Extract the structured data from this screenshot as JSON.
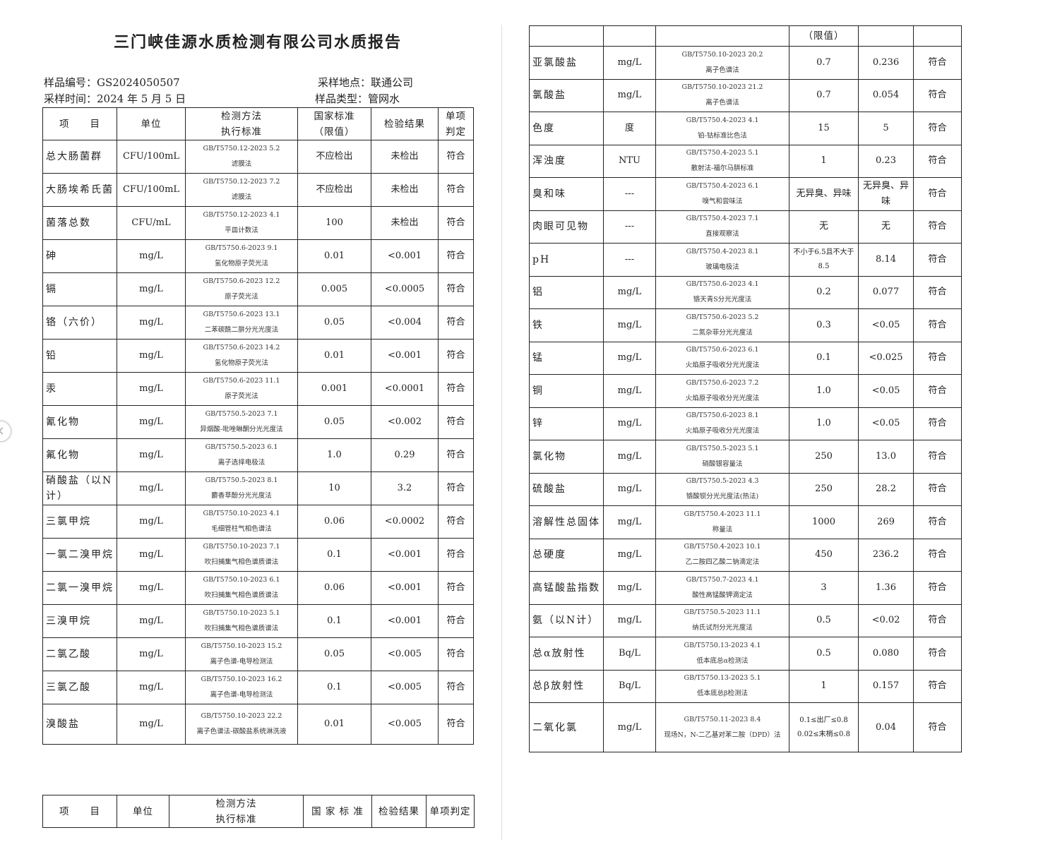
{
  "title": "三门峡佳源水质检测有限公司水质报告",
  "info": {
    "sample_no": "样品编号：GS2024050507",
    "sample_site": "采样地点：联通公司",
    "sample_time": "采样时间：2024 年 5 月 5 日",
    "sample_type": "样品类型：管网水"
  },
  "headers": {
    "item": "项　　目",
    "unit": "单位",
    "method1": "检测方法",
    "method2": "执行标准",
    "limit1": "国家标准",
    "limit2": "（限值）",
    "result": "检验结果",
    "judge1": "单项",
    "judge2": "判定"
  },
  "right_header_limit": "（限值）",
  "left_rows": [
    [
      "总大肠菌群",
      "CFU/100mL",
      "GB/T5750.12-2023 5.2",
      "滤膜法",
      "不应检出",
      "未检出",
      "符合"
    ],
    [
      "大肠埃希氏菌",
      "CFU/100mL",
      "GB/T5750.12-2023 7.2",
      "滤膜法",
      "不应检出",
      "未检出",
      "符合"
    ],
    [
      "菌落总数",
      "CFU/mL",
      "GB/T5750.12-2023 4.1",
      "平皿计数法",
      "100",
      "未检出",
      "符合"
    ],
    [
      "砷",
      "mg/L",
      "GB/T5750.6-2023 9.1",
      "氢化物原子荧光法",
      "0.01",
      "<0.001",
      "符合"
    ],
    [
      "镉",
      "mg/L",
      "GB/T5750.6-2023 12.2",
      "原子荧光法",
      "0.005",
      "<0.0005",
      "符合"
    ],
    [
      "铬（六价）",
      "mg/L",
      "GB/T5750.6-2023 13.1",
      "二苯碳酰二肼分光光度法",
      "0.05",
      "<0.004",
      "符合"
    ],
    [
      "铅",
      "mg/L",
      "GB/T5750.6-2023 14.2",
      "氢化物原子荧光法",
      "0.01",
      "<0.001",
      "符合"
    ],
    [
      "汞",
      "mg/L",
      "GB/T5750.6-2023 11.1",
      "原子荧光法",
      "0.001",
      "<0.0001",
      "符合"
    ],
    [
      "氰化物",
      "mg/L",
      "GB/T5750.5-2023 7.1",
      "异烟酸-吡唑啉酮分光光度法",
      "0.05",
      "<0.002",
      "符合"
    ],
    [
      "氟化物",
      "mg/L",
      "GB/T5750.5-2023 6.1",
      "离子选择电极法",
      "1.0",
      "0.29",
      "符合"
    ],
    [
      "硝酸盐（以N计）",
      "mg/L",
      "GB/T5750.5-2023 8.1",
      "麝香草酚分光光度法",
      "10",
      "3.2",
      "符合"
    ],
    [
      "三氯甲烷",
      "mg/L",
      "GB/T5750.10-2023 4.1",
      "毛细管柱气相色谱法",
      "0.06",
      "<0.0002",
      "符合"
    ],
    [
      "一氯二溴甲烷",
      "mg/L",
      "GB/T5750.10-2023 7.1",
      "吹扫捕集气相色谱质谱法",
      "0.1",
      "<0.001",
      "符合"
    ],
    [
      "二氯一溴甲烷",
      "mg/L",
      "GB/T5750.10-2023 6.1",
      "吹扫捕集气相色谱质谱法",
      "0.06",
      "<0.001",
      "符合"
    ],
    [
      "三溴甲烷",
      "mg/L",
      "GB/T5750.10-2023 5.1",
      "吹扫捕集气相色谱质谱法",
      "0.1",
      "<0.001",
      "符合"
    ],
    [
      "二氯乙酸",
      "mg/L",
      "GB/T5750.10-2023 15.2",
      "离子色谱-电导检测法",
      "0.05",
      "<0.005",
      "符合"
    ],
    [
      "三氯乙酸",
      "mg/L",
      "GB/T5750.10-2023 16.2",
      "离子色谱-电导检测法",
      "0.1",
      "<0.005",
      "符合"
    ],
    [
      "溴酸盐",
      "mg/L",
      "GB/T5750.10-2023 22.2",
      "离子色谱法-碳酸盐系统淋洗液",
      "0.01",
      "<0.005",
      "符合"
    ]
  ],
  "right_rows": [
    [
      "亚氯酸盐",
      "mg/L",
      "GB/T5750.10-2023 20.2",
      "离子色谱法",
      "0.7",
      "0.236",
      "符合"
    ],
    [
      "氯酸盐",
      "mg/L",
      "GB/T5750.10-2023 21.2",
      "离子色谱法",
      "0.7",
      "0.054",
      "符合"
    ],
    [
      "色度",
      "度",
      "GB/T5750.4-2023 4.1",
      "铂-钴标准比色法",
      "15",
      "5",
      "符合"
    ],
    [
      "浑浊度",
      "NTU",
      "GB/T5750.4-2023 5.1",
      "散射法-福尔马肼标准",
      "1",
      "0.23",
      "符合"
    ],
    [
      "臭和味",
      "---",
      "GB/T5750.4-2023 6.1",
      "嗅气和尝味法",
      "无异臭、异味",
      "无异臭、异味",
      "符合"
    ],
    [
      "肉眼可见物",
      "---",
      "GB/T5750.4-2023 7.1",
      "直接观察法",
      "无",
      "无",
      "符合"
    ],
    [
      "pH",
      "---",
      "GB/T5750.4-2023 8.1",
      "玻璃电极法",
      "不小于6.5且不大于8.5",
      "8.14",
      "符合"
    ],
    [
      "铝",
      "mg/L",
      "GB/T5750.6-2023 4.1",
      "铬天青S分光光度法",
      "0.2",
      "0.077",
      "符合"
    ],
    [
      "铁",
      "mg/L",
      "GB/T5750.6-2023 5.2",
      "二氮杂菲分光光度法",
      "0.3",
      "<0.05",
      "符合"
    ],
    [
      "锰",
      "mg/L",
      "GB/T5750.6-2023 6.1",
      "火焰原子吸收分光光度法",
      "0.1",
      "<0.025",
      "符合"
    ],
    [
      "铜",
      "mg/L",
      "GB/T5750.6-2023 7.2",
      "火焰原子吸收分光光度法",
      "1.0",
      "<0.05",
      "符合"
    ],
    [
      "锌",
      "mg/L",
      "GB/T5750.6-2023 8.1",
      "火焰原子吸收分光光度法",
      "1.0",
      "<0.05",
      "符合"
    ],
    [
      "氯化物",
      "mg/L",
      "GB/T5750.5-2023 5.1",
      "硝酸银容量法",
      "250",
      "13.0",
      "符合"
    ],
    [
      "硫酸盐",
      "mg/L",
      "GB/T5750.5-2023 4.3",
      "铬酸钡分光光度法(热法)",
      "250",
      "28.2",
      "符合"
    ],
    [
      "溶解性总固体",
      "mg/L",
      "GB/T5750.4-2023 11.1",
      "称量法",
      "1000",
      "269",
      "符合"
    ],
    [
      "总硬度",
      "mg/L",
      "GB/T5750.4-2023 10.1",
      "乙二胺四乙酸二钠滴定法",
      "450",
      "236.2",
      "符合"
    ],
    [
      "高锰酸盐指数",
      "mg/L",
      "GB/T5750.7-2023 4.1",
      "酸性高锰酸钾滴定法",
      "3",
      "1.36",
      "符合"
    ],
    [
      "氨（以N计）",
      "mg/L",
      "GB/T5750.5-2023 11.1",
      "纳氏试剂分光光度法",
      "0.5",
      "<0.02",
      "符合"
    ],
    [
      "总α放射性",
      "Bq/L",
      "GB/T5750.13-2023 4.1",
      "低本底总α检测法",
      "0.5",
      "0.080",
      "符合"
    ],
    [
      "总β放射性",
      "Bq/L",
      "GB/T5750.13-2023 5.1",
      "低本底总β检测法",
      "1",
      "0.157",
      "符合"
    ],
    [
      "二氧化氯",
      "mg/L",
      "GB/T5750.11-2023 8.4",
      "现场N，N-二乙基对苯二胺（DPD）法",
      "0.1≤出厂≤0.8 0.02≤末梢≤0.8",
      "0.04",
      "符合"
    ]
  ],
  "bottom_headers": {
    "item": "项　　目",
    "unit": "单位",
    "method1": "检测方法",
    "method2": "执行标准",
    "limit": "国 家 标 准",
    "result": "检验结果",
    "judge": "单项判定"
  }
}
